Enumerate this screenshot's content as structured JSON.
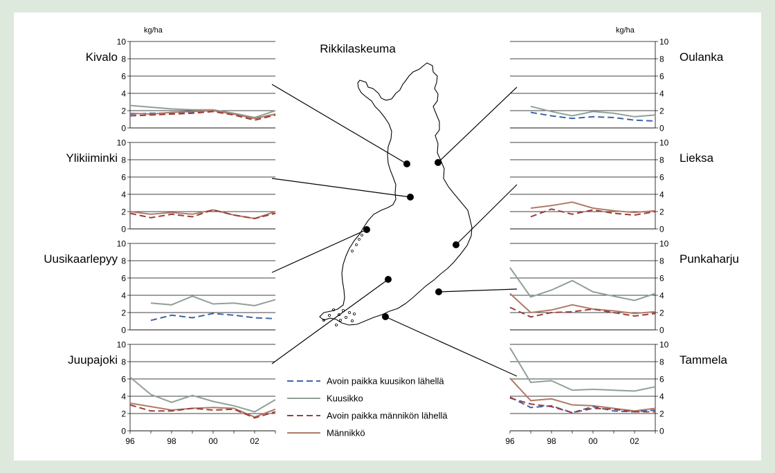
{
  "title": "Rikkilaskeuma",
  "unit_left": "kg/ha",
  "unit_right": "kg/ha",
  "x_ticks": [
    "96",
    "98",
    "00",
    "02"
  ],
  "y_ticks": [
    "0",
    "2",
    "4",
    "6",
    "8",
    "10"
  ],
  "colors": {
    "avoin_kuusikko": "#3b64a8",
    "kuusikko": "#8fa095",
    "avoin_mannikko": "#9c3c3a",
    "mannikko": "#b07a66"
  },
  "legend": [
    {
      "key": "avoin_kuusikko",
      "label": "Avoin paikka kuusikon lähellä",
      "dash": true
    },
    {
      "key": "kuusikko",
      "label": "Kuusikko",
      "dash": false
    },
    {
      "key": "avoin_mannikko",
      "label": "Avoin paikka männikön lähellä",
      "dash": true
    },
    {
      "key": "mannikko",
      "label": "Männikkö",
      "dash": false
    }
  ],
  "chart_data": [
    {
      "type": "line",
      "site": "Kivalo",
      "x": [
        1996,
        1997,
        1998,
        1999,
        2000,
        2001,
        2002,
        2003
      ],
      "ylim": [
        0,
        10
      ],
      "series": [
        {
          "name": "Kuusikko",
          "key": "kuusikko",
          "values": [
            2.6,
            2.4,
            2.2,
            2.1,
            2.1,
            1.7,
            1.2,
            2.0
          ]
        },
        {
          "name": "Avoin paikka kuusikon lähellä",
          "key": "avoin_kuusikko",
          "values": [
            1.6,
            1.7,
            1.7,
            1.8,
            1.9,
            1.6,
            1.1,
            1.6
          ]
        },
        {
          "name": "Männikkö",
          "key": "mannikko",
          "values": [
            1.7,
            1.6,
            1.8,
            1.9,
            2.0,
            1.6,
            1.1,
            1.6
          ]
        },
        {
          "name": "Avoin paikka männikön lähellä",
          "key": "avoin_mannikko",
          "values": [
            1.4,
            1.5,
            1.6,
            1.7,
            1.9,
            1.5,
            0.9,
            1.5
          ]
        }
      ]
    },
    {
      "type": "line",
      "site": "Ylikiiminki",
      "x": [
        1996,
        1997,
        1998,
        1999,
        2000,
        2001,
        2002,
        2003
      ],
      "ylim": [
        0,
        10
      ],
      "series": [
        {
          "name": "Männikkö",
          "key": "mannikko",
          "values": [
            2.0,
            1.7,
            1.9,
            1.7,
            2.2,
            1.6,
            1.2,
            2.0
          ]
        },
        {
          "name": "Avoin paikka männikön lähellä",
          "key": "avoin_mannikko",
          "values": [
            1.8,
            1.3,
            1.7,
            1.4,
            2.2,
            1.6,
            1.2,
            1.8
          ]
        }
      ]
    },
    {
      "type": "line",
      "site": "Uusikaarlepyy",
      "x": [
        1996,
        1997,
        1998,
        1999,
        2000,
        2001,
        2002,
        2003
      ],
      "ylim": [
        0,
        10
      ],
      "series": [
        {
          "name": "Kuusikko",
          "key": "kuusikko",
          "values": [
            null,
            3.1,
            2.9,
            3.9,
            3.0,
            3.1,
            2.8,
            3.5
          ]
        },
        {
          "name": "Avoin paikka kuusikon lähellä",
          "key": "avoin_kuusikko",
          "values": [
            null,
            1.1,
            1.7,
            1.4,
            1.9,
            1.7,
            1.4,
            1.3
          ]
        }
      ]
    },
    {
      "type": "line",
      "site": "Juupajoki",
      "x": [
        1996,
        1997,
        1998,
        1999,
        2000,
        2001,
        2002,
        2003
      ],
      "ylim": [
        0,
        10
      ],
      "series": [
        {
          "name": "Kuusikko",
          "key": "kuusikko",
          "values": [
            6.2,
            4.2,
            3.3,
            4.1,
            3.4,
            2.9,
            2.2,
            3.6
          ]
        },
        {
          "name": "Männikkö",
          "key": "mannikko",
          "values": [
            3.2,
            2.8,
            2.4,
            2.6,
            2.7,
            2.6,
            1.6,
            2.5
          ]
        },
        {
          "name": "Avoin paikka männikön lähellä",
          "key": "avoin_mannikko",
          "values": [
            3.0,
            2.3,
            2.3,
            2.6,
            2.4,
            2.5,
            1.5,
            2.2
          ]
        }
      ]
    },
    {
      "type": "line",
      "site": "Oulanka",
      "x": [
        1996,
        1997,
        1998,
        1999,
        2000,
        2001,
        2002,
        2003
      ],
      "ylim": [
        0,
        10
      ],
      "series": [
        {
          "name": "Kuusikko",
          "key": "kuusikko",
          "values": [
            null,
            2.5,
            1.9,
            1.4,
            1.9,
            1.7,
            1.3,
            1.5
          ]
        },
        {
          "name": "Avoin paikka kuusikon lähellä",
          "key": "avoin_kuusikko",
          "values": [
            null,
            1.8,
            1.4,
            1.1,
            1.3,
            1.2,
            0.9,
            0.8
          ]
        }
      ]
    },
    {
      "type": "line",
      "site": "Lieksa",
      "x": [
        1996,
        1997,
        1998,
        1999,
        2000,
        2001,
        2002,
        2003
      ],
      "ylim": [
        0,
        10
      ],
      "series": [
        {
          "name": "Männikkö",
          "key": "mannikko",
          "values": [
            null,
            2.4,
            2.7,
            3.1,
            2.4,
            2.1,
            1.9,
            2.1
          ]
        },
        {
          "name": "Avoin paikka männikön lähellä",
          "key": "avoin_mannikko",
          "values": [
            null,
            1.4,
            2.3,
            1.7,
            2.2,
            1.8,
            1.6,
            2.0
          ]
        }
      ]
    },
    {
      "type": "line",
      "site": "Punkaharju",
      "x": [
        1996,
        1997,
        1998,
        1999,
        2000,
        2001,
        2002,
        2003
      ],
      "ylim": [
        0,
        10
      ],
      "series": [
        {
          "name": "Kuusikko",
          "key": "kuusikko",
          "values": [
            7.2,
            3.8,
            4.6,
            5.7,
            4.4,
            3.9,
            3.4,
            4.2
          ]
        },
        {
          "name": "Männikkö",
          "key": "mannikko",
          "values": [
            4.2,
            2.0,
            2.3,
            2.9,
            2.4,
            2.2,
            1.9,
            2.1
          ]
        },
        {
          "name": "Avoin paikka männikön lähellä",
          "key": "avoin_mannikko",
          "values": [
            2.6,
            1.5,
            2.0,
            2.1,
            2.4,
            2.0,
            1.6,
            1.9
          ]
        }
      ]
    },
    {
      "type": "line",
      "site": "Tammela",
      "x": [
        1996,
        1997,
        1998,
        1999,
        2000,
        2001,
        2002,
        2003
      ],
      "ylim": [
        0,
        10
      ],
      "series": [
        {
          "name": "Kuusikko",
          "key": "kuusikko",
          "values": [
            9.6,
            5.6,
            5.8,
            4.7,
            4.8,
            4.7,
            4.6,
            5.1
          ]
        },
        {
          "name": "Männikkö",
          "key": "mannikko",
          "values": [
            6.1,
            3.5,
            3.7,
            3.0,
            2.9,
            2.6,
            2.3,
            2.6
          ]
        },
        {
          "name": "Avoin paikka kuusikon lähellä",
          "key": "avoin_kuusikko",
          "values": [
            3.9,
            2.7,
            2.9,
            2.1,
            2.8,
            2.3,
            2.2,
            2.4
          ]
        },
        {
          "name": "Avoin paikka männikön lähellä",
          "key": "avoin_mannikko",
          "values": [
            3.8,
            3.1,
            2.8,
            2.1,
            2.6,
            2.5,
            2.2,
            2.2
          ]
        }
      ]
    }
  ]
}
